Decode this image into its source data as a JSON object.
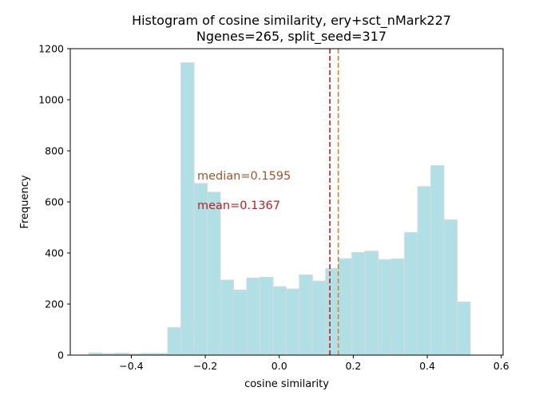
{
  "chart_data": {
    "type": "bar",
    "title_line1": "Histogram of cosine similarity, ery+sct_nMark227",
    "title_line2": "Ngenes=265, split_seed=317",
    "xlabel": "cosine similarity",
    "ylabel": "Frequency",
    "xlim": [
      -0.565,
      0.605
    ],
    "ylim": [
      0,
      1200
    ],
    "x_ticks": [
      -0.4,
      -0.2,
      0.0,
      0.2,
      0.4,
      0.6
    ],
    "x_tick_labels": [
      "−0.4",
      "−0.2",
      "0.0",
      "0.2",
      "0.4",
      "0.6"
    ],
    "y_ticks": [
      0,
      200,
      400,
      600,
      800,
      1000,
      1200
    ],
    "y_tick_labels": [
      "0",
      "200",
      "400",
      "600",
      "800",
      "1000",
      "1200"
    ],
    "bin_start": -0.5147,
    "bin_width": 0.03555,
    "counts": [
      9,
      6,
      8,
      5,
      7,
      7,
      108,
      1145,
      672,
      638,
      294,
      255,
      302,
      305,
      268,
      259,
      314,
      290,
      339,
      378,
      402,
      407,
      374,
      377,
      480,
      660,
      742,
      530,
      208
    ],
    "bar_color": "#b0dfe5",
    "bar_edge_color": "#d8d8d8",
    "median_value": 0.1595,
    "mean_value": 0.1367,
    "median_label": "median=0.1595",
    "mean_label": "mean=0.1367",
    "median_color": "#a0522d",
    "mean_color": "#b22222",
    "median_line_color": "#d2822d",
    "mean_line_color": "#b22222",
    "grid": false
  }
}
